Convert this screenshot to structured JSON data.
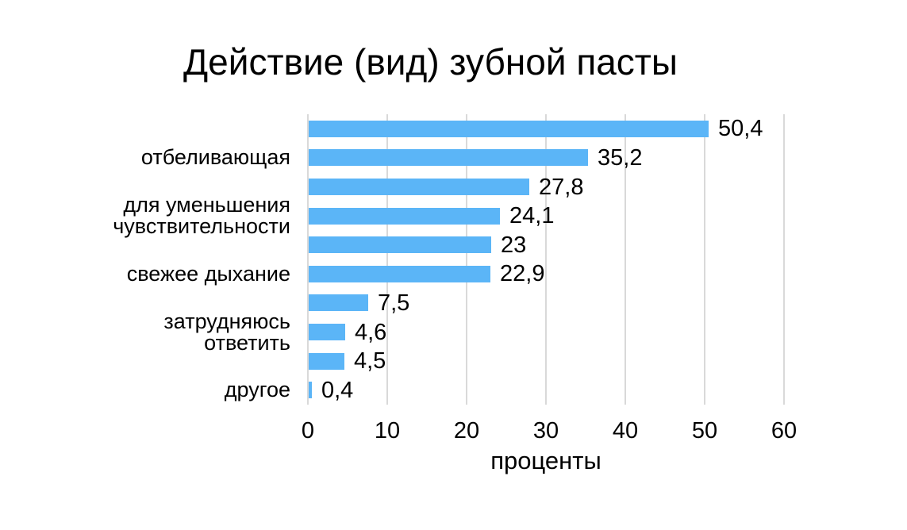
{
  "chart_data": {
    "type": "bar",
    "orientation": "horizontal",
    "title": "Действие (вид) зубной пасты",
    "xlabel": "проценты",
    "xlim": [
      0,
      60
    ],
    "xticks": [
      0,
      10,
      20,
      30,
      40,
      50,
      60
    ],
    "grid": "vertical-gridlines-on",
    "legend_position": "none",
    "bar_color": "#5BB5F7",
    "gridline_color": "#D9D9D9",
    "text_color": "#000000",
    "background_color": "#FFFFFF",
    "bars": [
      {
        "category": "",
        "value": 50.4,
        "value_label": "50,4"
      },
      {
        "category": "отбеливающая",
        "value": 35.2,
        "value_label": "35,2"
      },
      {
        "category": "",
        "value": 27.8,
        "value_label": "27,8"
      },
      {
        "category": "для уменьшения\nчувствительности",
        "value": 24.1,
        "value_label": "24,1"
      },
      {
        "category": "",
        "value": 23,
        "value_label": "23"
      },
      {
        "category": "свежее дыхание",
        "value": 22.9,
        "value_label": "22,9"
      },
      {
        "category": "",
        "value": 7.5,
        "value_label": "7,5"
      },
      {
        "category": "затрудняюсь\nответить",
        "value": 4.6,
        "value_label": "4,6"
      },
      {
        "category": "",
        "value": 4.5,
        "value_label": "4,5"
      },
      {
        "category": "другое",
        "value": 0.4,
        "value_label": "0,4"
      }
    ]
  }
}
